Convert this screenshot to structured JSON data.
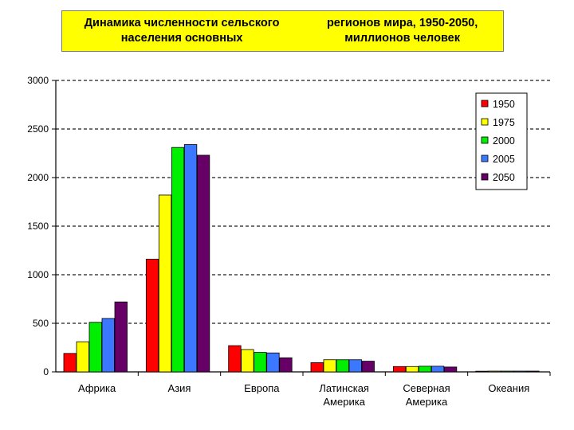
{
  "chart_data": {
    "type": "bar",
    "title_lines": [
      "Динамика численности сельского населения основных",
      "регионов мира, 1950-2050, миллионов человек"
    ],
    "categories": [
      [
        "Африка"
      ],
      [
        "Азия"
      ],
      [
        "Европа"
      ],
      [
        "Латинская",
        "Америка"
      ],
      [
        "Северная",
        "Америка"
      ],
      [
        "Океания"
      ]
    ],
    "series": [
      {
        "name": "1950",
        "color": "#ff0000",
        "values": [
          190,
          1160,
          270,
          95,
          55,
          7
        ]
      },
      {
        "name": "1975",
        "color": "#ffff00",
        "values": [
          310,
          1820,
          230,
          125,
          55,
          8
        ]
      },
      {
        "name": "2000",
        "color": "#00ee00",
        "values": [
          510,
          2310,
          200,
          125,
          58,
          8
        ]
      },
      {
        "name": "2005",
        "color": "#3c78ff",
        "values": [
          550,
          2340,
          195,
          125,
          58,
          8
        ]
      },
      {
        "name": "2050",
        "color": "#660066",
        "values": [
          720,
          2230,
          145,
          110,
          50,
          8
        ]
      }
    ],
    "y_ticks": [
      "0",
      "500",
      "1000",
      "1500",
      "2000",
      "2500",
      "3000"
    ],
    "ylim": [
      0,
      3000
    ],
    "grid": true,
    "legend_position": "top-right"
  }
}
